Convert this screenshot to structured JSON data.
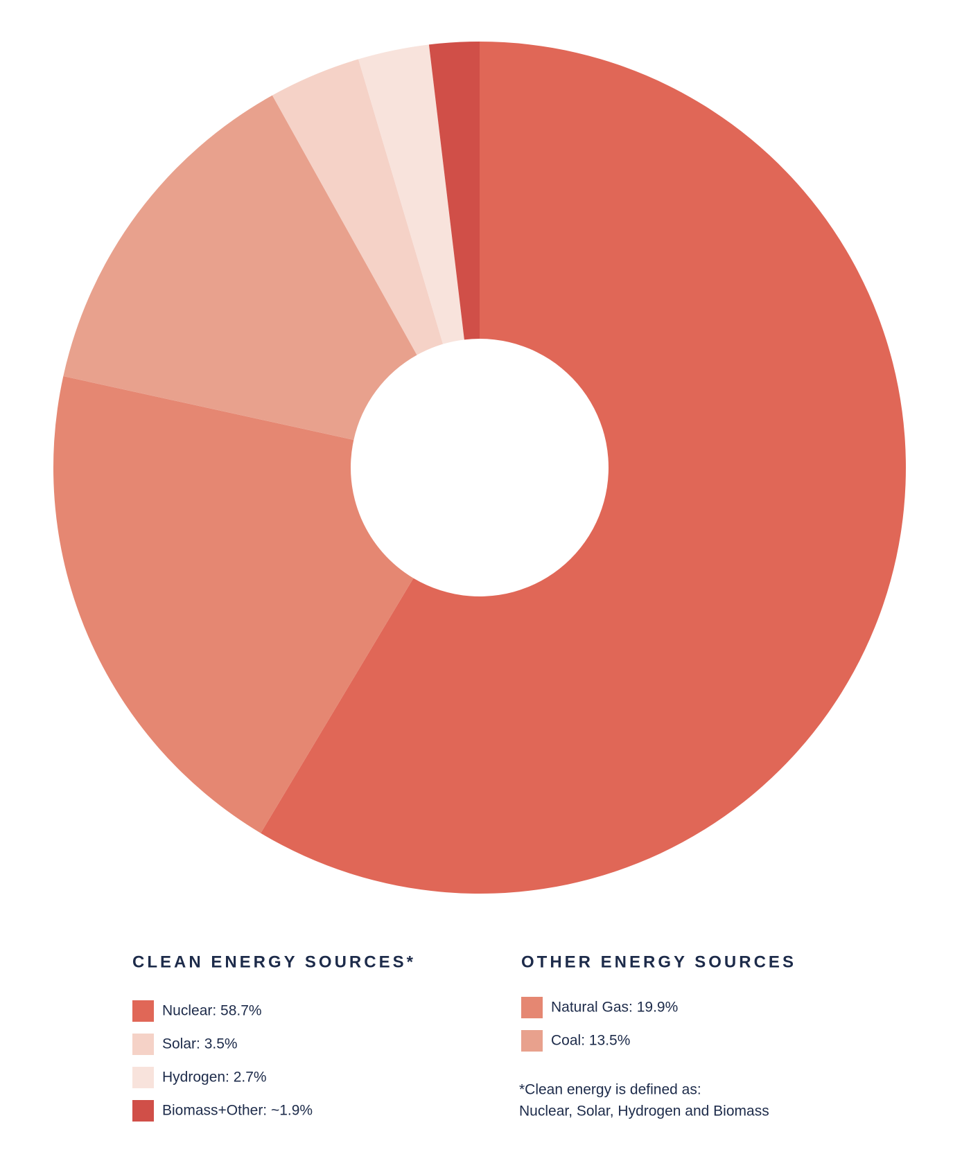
{
  "chart_data": {
    "type": "donut",
    "groups": [
      {
        "title": "CLEAN ENERGY SOURCES*",
        "items": [
          {
            "label": "Nuclear: 58.7%",
            "value": 58.7,
            "color": "#e06757"
          },
          {
            "label": "Solar: 3.5%",
            "value": 3.5,
            "color": "#f5d2c7"
          },
          {
            "label": "Hydrogen: 2.7%",
            "value": 2.7,
            "color": "#f8e3dc"
          },
          {
            "label": "Biomass+Other: ~1.9%",
            "value": 1.9,
            "color": "#d04f48"
          }
        ]
      },
      {
        "title": "OTHER ENERGY SOURCES",
        "items": [
          {
            "label": "Natural Gas: 19.9%",
            "value": 19.9,
            "color": "#e58772"
          },
          {
            "label": "Coal: 13.5%",
            "value": 13.5,
            "color": "#e8a18d"
          }
        ]
      }
    ],
    "footnote": [
      "*Clean energy is defined as:",
      "Nuclear, Solar, Hydrogen and Biomass"
    ]
  }
}
